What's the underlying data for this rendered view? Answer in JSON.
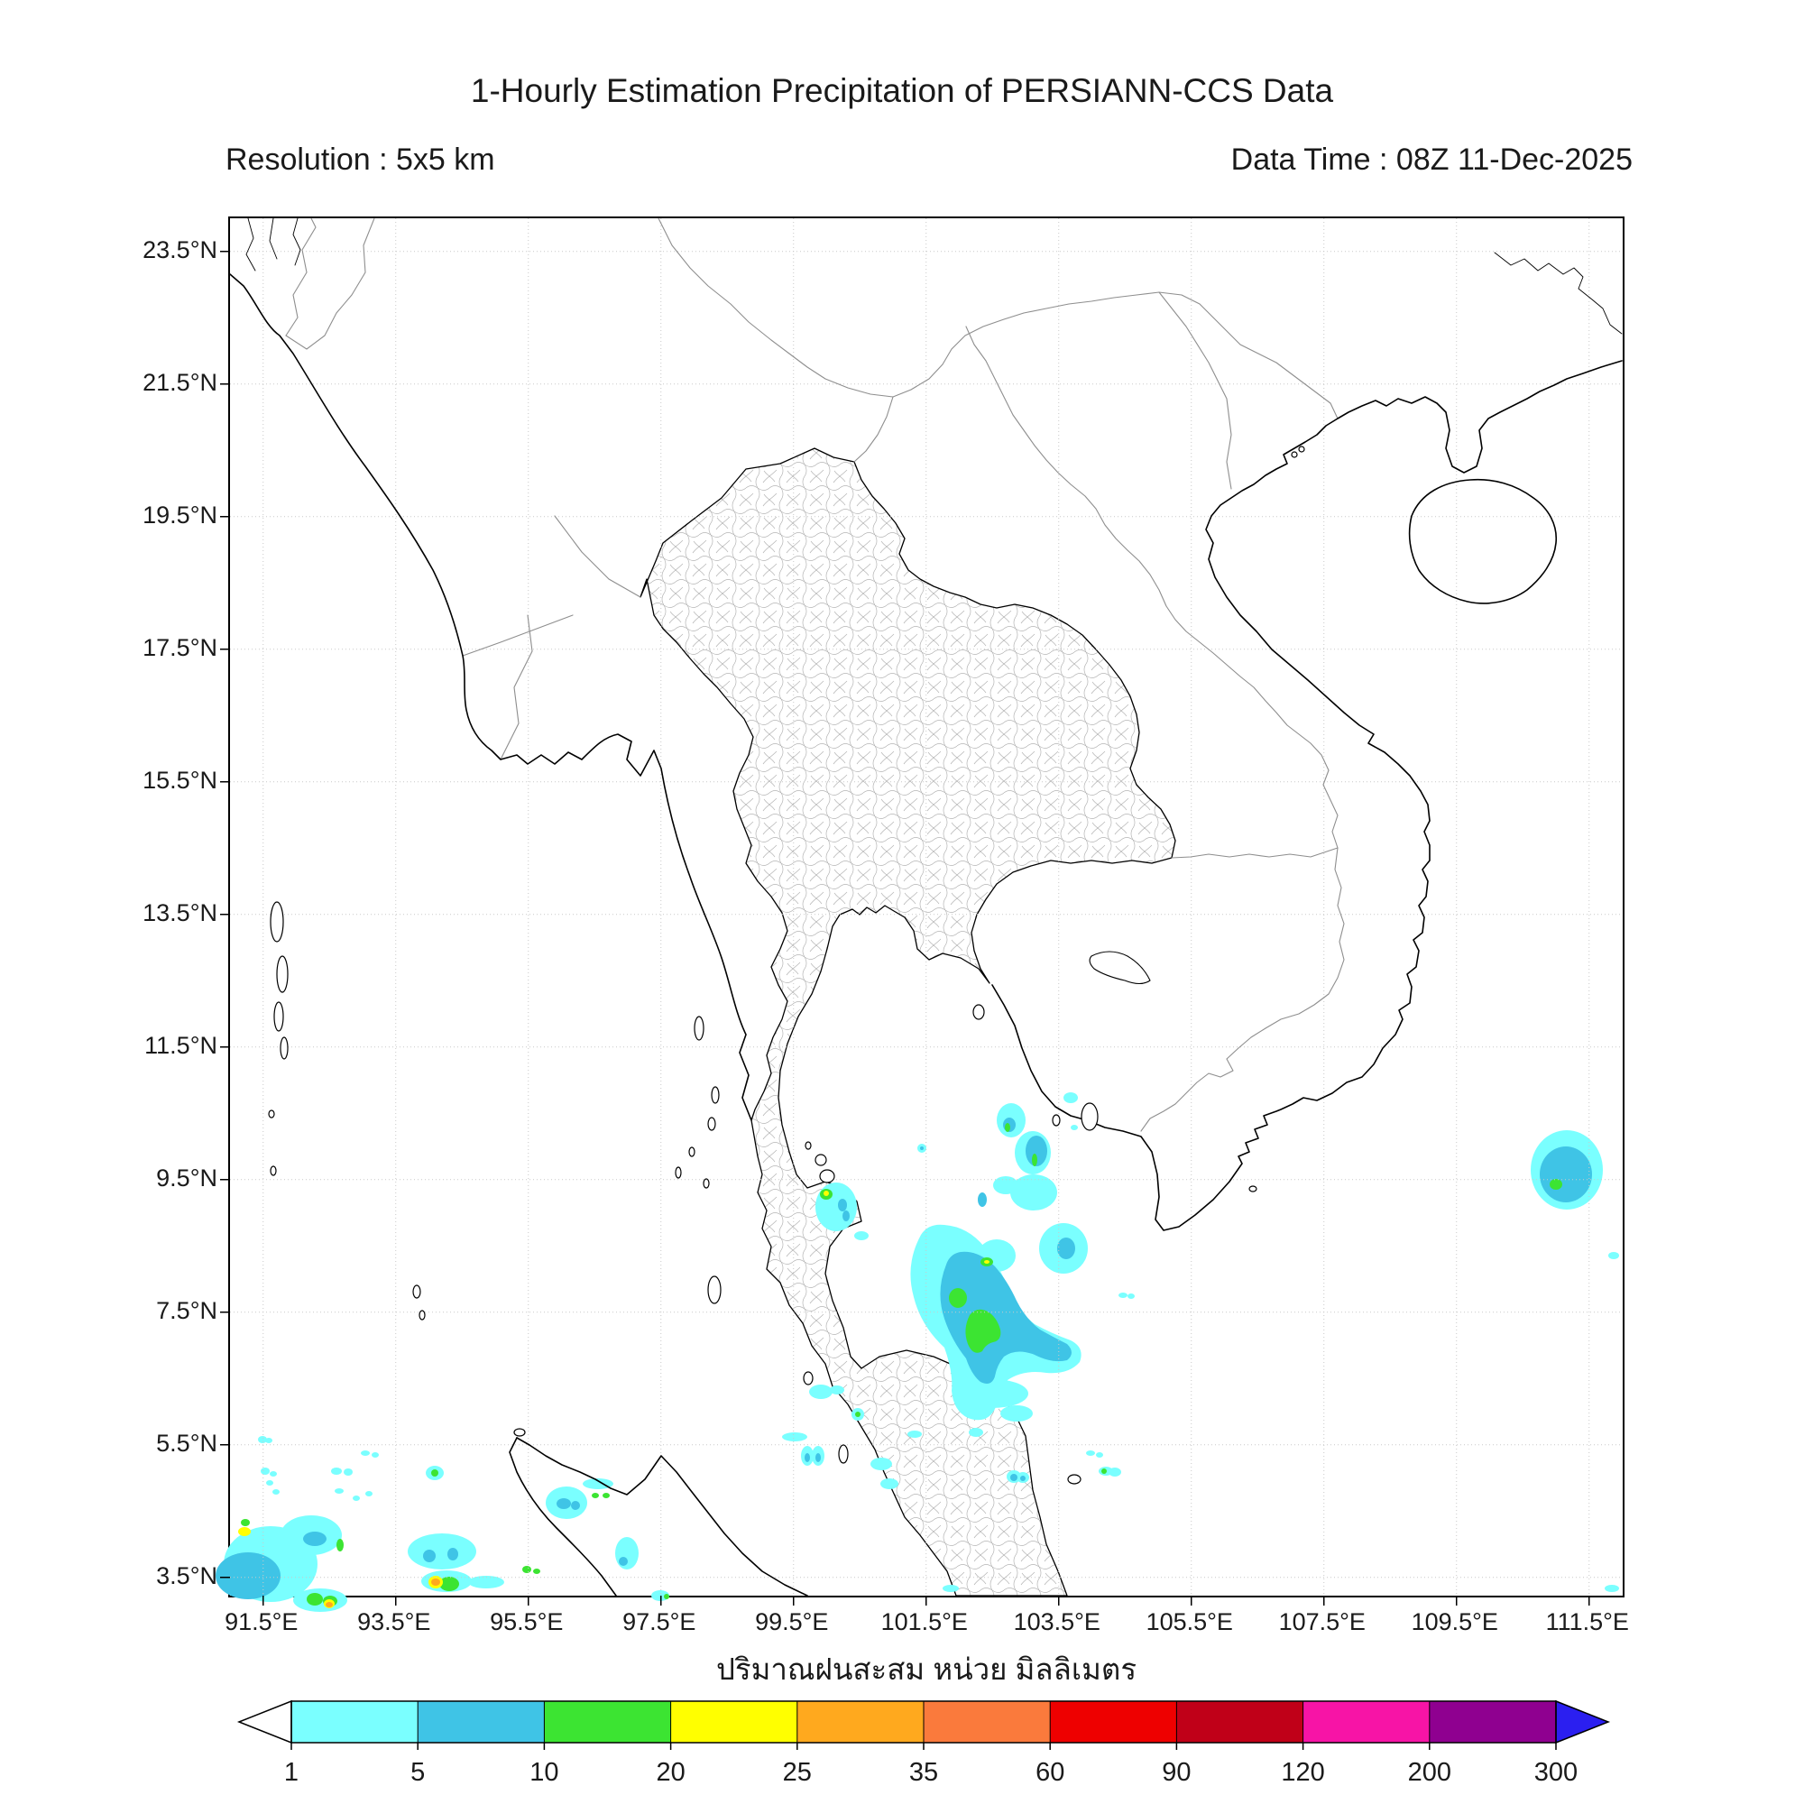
{
  "header": {
    "title": "1-Hourly Estimation Precipitation of PERSIANN-CCS Data",
    "resolution": "Resolution : 5x5 km",
    "data_time": "Data Time : 08Z 11-Dec-2025"
  },
  "map": {
    "x_ticks": [
      {
        "label": "91.5°E",
        "pos": 36.75
      },
      {
        "label": "93.5°E",
        "pos": 183.75
      },
      {
        "label": "95.5°E",
        "pos": 330.75
      },
      {
        "label": "97.5°E",
        "pos": 477.75
      },
      {
        "label": "99.5°E",
        "pos": 624.75
      },
      {
        "label": "101.5°E",
        "pos": 771.75
      },
      {
        "label": "103.5°E",
        "pos": 918.75
      },
      {
        "label": "105.5°E",
        "pos": 1065.75
      },
      {
        "label": "107.5°E",
        "pos": 1212.75
      },
      {
        "label": "109.5°E",
        "pos": 1359.75
      },
      {
        "label": "111.5°E",
        "pos": 1506.75
      }
    ],
    "y_ticks": [
      {
        "label": "23.5°N",
        "pos": 36.75
      },
      {
        "label": "21.5°N",
        "pos": 183.75
      },
      {
        "label": "19.5°N",
        "pos": 330.75
      },
      {
        "label": "17.5°N",
        "pos": 477.75
      },
      {
        "label": "15.5°N",
        "pos": 624.75
      },
      {
        "label": "13.5°N",
        "pos": 771.75
      },
      {
        "label": "11.5°N",
        "pos": 918.75
      },
      {
        "label": "9.5°N",
        "pos": 1065.75
      },
      {
        "label": "7.5°N",
        "pos": 1212.75
      },
      {
        "label": "5.5°N",
        "pos": 1359.75
      },
      {
        "label": "3.5°N",
        "pos": 1506.75
      }
    ]
  },
  "colorbar": {
    "unit_label": "ปริมาณฝนสะสม หน่วย มิลลิเมตร",
    "boundaries": [
      "1",
      "5",
      "10",
      "20",
      "25",
      "35",
      "60",
      "90",
      "120",
      "200",
      "300"
    ],
    "segment_colors": [
      "#7AFFFF",
      "#3FC4E6",
      "#3CE432",
      "#FFFF00",
      "#FFA91E",
      "#FA7A3C",
      "#EE0000",
      "#C00018",
      "#F714A6",
      "#8F0090"
    ],
    "under_color": "#FFFFFF",
    "over_color": "#2B1FF0"
  },
  "chart_data": {
    "type": "heatmap",
    "title": "1-Hourly Estimation Precipitation of PERSIANN-CCS Data",
    "x_range_deg_east": [
      91.0,
      112.0
    ],
    "y_range_deg_north": [
      3.2,
      24.0
    ],
    "x_tick_values": [
      91.5,
      93.5,
      95.5,
      97.5,
      99.5,
      101.5,
      103.5,
      105.5,
      107.5,
      109.5,
      111.5
    ],
    "y_tick_values": [
      23.5,
      21.5,
      19.5,
      17.5,
      15.5,
      13.5,
      11.5,
      9.5,
      7.5,
      5.5,
      3.5
    ],
    "unit": "mm",
    "scale_mm": [
      1,
      5,
      10,
      20,
      25,
      35,
      60,
      90,
      120,
      200,
      300
    ],
    "grid": true,
    "precip": {
      "palette": {
        "c": "#7AFFFF",
        "b": "#3FC4E6",
        "g": "#3CE432",
        "y": "#FFFF00",
        "o": "#FFA91E",
        "d": "#FA7A3C"
      },
      "levels_mm": {
        "c": "1-5",
        "b": "5-10",
        "g": "10-20",
        "y": "20-25",
        "o": "25-35",
        "d": "35-60"
      },
      "order": [
        "c",
        "b",
        "g",
        "y",
        "o",
        "d"
      ],
      "paths": {
        "c": [
          "M766 1127 Q748 1160 758 1196 Q766 1228 792 1252 Q802 1280 800 1300 Q802 1322 818 1330 Q840 1338 849 1318 Q853 1302 862 1288 Q880 1276 905 1280 Q930 1282 942 1268 Q948 1252 932 1244 Q910 1236 892 1226 Q874 1212 864 1188 Q852 1160 836 1140 Q818 1118 792 1116 Q774 1114 766 1127 Z"
        ],
        "b": [
          "M794 1160 Q782 1190 792 1220 Q800 1244 816 1264 Q822 1282 832 1290 Q844 1296 848 1284 Q850 1272 858 1262 Q872 1252 892 1260 Q912 1270 928 1266 Q938 1258 928 1248 Q912 1240 898 1232 Q882 1220 872 1200 Q862 1178 848 1162 Q830 1144 810 1146 Q798 1148 794 1160 Z"
        ],
        "g": [
          "M820 1216 Q812 1232 818 1248 Q824 1262 834 1256 Q838 1248 846 1246 Q856 1244 854 1232 Q850 1218 840 1212 Q828 1206 820 1216 Z"
        ]
      },
      "patches": {
        "c": [
          [
            866,
            1000,
            16,
            19
          ],
          [
            890,
            1036,
            20,
            24
          ],
          [
            891,
            1080,
            26,
            20
          ],
          [
            860,
            1072,
            14,
            10
          ],
          [
            924,
            1142,
            27,
            28
          ],
          [
            850,
            1150,
            21,
            18
          ],
          [
            767,
            1031,
            5,
            5
          ],
          [
            932,
            975,
            8,
            6
          ],
          [
            936,
            1008,
            4,
            3
          ],
          [
            672,
            1096,
            23,
            27
          ],
          [
            700,
            1128,
            8,
            5
          ],
          [
            1482,
            1055,
            40,
            44
          ],
          [
            1534,
            1150,
            6,
            4
          ],
          [
            845,
            1303,
            40,
            16
          ],
          [
            872,
            1325,
            18,
            9
          ],
          [
            827,
            1346,
            8,
            5
          ],
          [
            990,
            1194,
            5,
            3
          ],
          [
            999,
            1195,
            4,
            3
          ],
          [
            45,
            1492,
            52,
            42
          ],
          [
            90,
            1460,
            34,
            22
          ],
          [
            100,
            1532,
            30,
            13
          ],
          [
            36,
            1354,
            5,
            4
          ],
          [
            43,
            1355,
            4,
            3
          ],
          [
            39,
            1389,
            5,
            4
          ],
          [
            48,
            1392,
            4,
            3
          ],
          [
            44,
            1402,
            4,
            3
          ],
          [
            51,
            1412,
            4,
            3
          ],
          [
            118,
            1389,
            6,
            4
          ],
          [
            131,
            1390,
            5,
            4
          ],
          [
            121,
            1411,
            5,
            3
          ],
          [
            140,
            1419,
            4,
            3
          ],
          [
            154,
            1414,
            4,
            3
          ],
          [
            227,
            1391,
            10,
            8
          ],
          [
            235,
            1478,
            38,
            20
          ],
          [
            240,
            1511,
            28,
            12
          ],
          [
            284,
            1512,
            20,
            7
          ],
          [
            150,
            1369,
            5,
            3
          ],
          [
            161,
            1371,
            4,
            3
          ],
          [
            373,
            1424,
            23,
            18
          ],
          [
            408,
            1403,
            17,
            6
          ],
          [
            440,
            1480,
            13,
            18
          ],
          [
            477,
            1527,
            10,
            6
          ],
          [
            640,
            1372,
            7,
            11
          ],
          [
            652,
            1372,
            7,
            11
          ],
          [
            626,
            1351,
            14,
            5
          ],
          [
            655,
            1301,
            13,
            8
          ],
          [
            673,
            1299,
            8,
            5
          ],
          [
            696,
            1326,
            7,
            7
          ],
          [
            759,
            1348,
            8,
            4
          ],
          [
            869,
            1395,
            8,
            7
          ],
          [
            879,
            1396,
            7,
            6
          ],
          [
            971,
            1389,
            8,
            5
          ],
          [
            981,
            1390,
            7,
            5
          ],
          [
            954,
            1369,
            5,
            3
          ],
          [
            964,
            1371,
            4,
            3
          ],
          [
            722,
            1381,
            12,
            7
          ],
          [
            731,
            1403,
            10,
            6
          ],
          [
            799,
            1519,
            9,
            4
          ],
          [
            1532,
            1519,
            8,
            4
          ]
        ],
        "b": [
          [
            864,
            1005,
            7,
            8
          ],
          [
            894,
            1034,
            12,
            17
          ],
          [
            834,
            1088,
            5,
            8
          ],
          [
            927,
            1142,
            10,
            12
          ],
          [
            767,
            1031,
            2,
            2
          ],
          [
            679,
            1094,
            5,
            7
          ],
          [
            683,
            1106,
            4,
            6
          ],
          [
            1481,
            1060,
            29,
            31
          ],
          [
            20,
            1505,
            36,
            26
          ],
          [
            94,
            1464,
            13,
            8
          ],
          [
            221,
            1483,
            7,
            7
          ],
          [
            247,
            1481,
            6,
            7
          ],
          [
            370,
            1425,
            8,
            6
          ],
          [
            383,
            1427,
            5,
            5
          ],
          [
            436,
            1489,
            5,
            5
          ],
          [
            640,
            1374,
            3,
            5
          ],
          [
            652,
            1374,
            3,
            5
          ],
          [
            869,
            1396,
            4,
            4
          ],
          [
            879,
            1397,
            3,
            3
          ]
        ],
        "g": [
          [
            862,
            1008,
            3,
            5
          ],
          [
            892,
            1044,
            3,
            7
          ],
          [
            839,
            1157,
            7,
            5
          ],
          [
            661,
            1082,
            7,
            6
          ],
          [
            1470,
            1071,
            7,
            6
          ],
          [
            807,
            1197,
            10,
            11
          ],
          [
            17,
            1446,
            5,
            4
          ],
          [
            122,
            1471,
            4,
            7
          ],
          [
            94,
            1531,
            9,
            7
          ],
          [
            111,
            1533,
            8,
            6
          ],
          [
            227,
            1391,
            4,
            4
          ],
          [
            243,
            1514,
            11,
            8
          ],
          [
            329,
            1498,
            5,
            4
          ],
          [
            340,
            1500,
            4,
            3
          ],
          [
            405,
            1416,
            4,
            3
          ],
          [
            417,
            1416,
            4,
            3
          ],
          [
            484,
            1528,
            3,
            3
          ],
          [
            696,
            1326,
            3,
            3
          ],
          [
            969,
            1389,
            3,
            3
          ]
        ],
        "y": [
          [
            839,
            1157,
            3,
            2
          ],
          [
            661,
            1081,
            3,
            3
          ],
          [
            16,
            1456,
            7,
            5
          ],
          [
            110,
            1536,
            6,
            5
          ],
          [
            228,
            1512,
            8,
            7
          ]
        ],
        "o": [
          [
            110,
            1537,
            4,
            3
          ],
          [
            228,
            1512,
            5,
            4
          ]
        ],
        "d": []
      }
    }
  }
}
